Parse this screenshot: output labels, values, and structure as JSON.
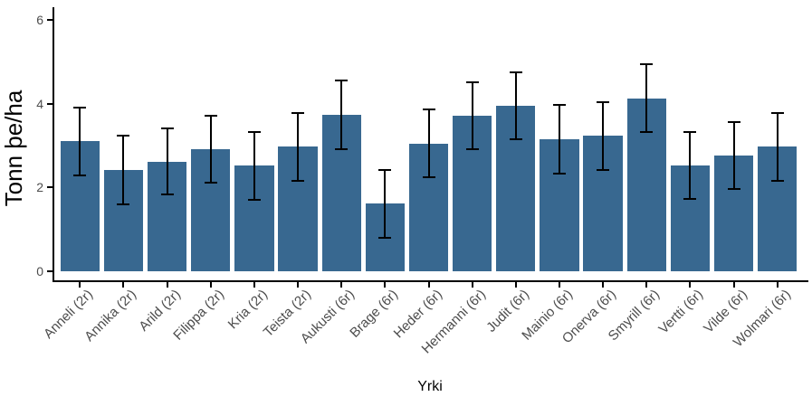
{
  "chart_data": {
    "type": "bar",
    "title": "",
    "xlabel": "Yrki",
    "ylabel": "Tonn þe/ha",
    "categories": [
      "Anneli (2r)",
      "Annika (2r)",
      "Arild (2r)",
      "Filippa (2r)",
      "Kria (2r)",
      "Teista (2r)",
      "Aukusti (6r)",
      "Brage (6r)",
      "Heder (6r)",
      "Hermanni (6r)",
      "Judit (6r)",
      "Mainio (6r)",
      "Onerva (6r)",
      "Smyrill (6r)",
      "Vertti (6r)",
      "Vilde (6r)",
      "Wolmari (6r)"
    ],
    "values": [
      3.1,
      2.42,
      2.62,
      2.92,
      2.52,
      2.98,
      3.73,
      1.61,
      3.05,
      3.72,
      3.95,
      3.16,
      3.23,
      4.13,
      2.52,
      2.77,
      2.98
    ],
    "errors": [
      0.82,
      0.82,
      0.79,
      0.8,
      0.81,
      0.81,
      0.82,
      0.81,
      0.81,
      0.8,
      0.8,
      0.82,
      0.81,
      0.81,
      0.8,
      0.8,
      0.81
    ],
    "error_bar_type": "symmetric",
    "y_ticks": [
      0,
      2,
      4,
      6
    ],
    "ylim": [
      0,
      6.35
    ],
    "x_tick_angle": 45,
    "grid": "off",
    "legend": "none",
    "colors": {
      "bar": "#386890",
      "error": "#000000",
      "axis": "#000000",
      "tick_label": "#4D4D4D",
      "axis_title": "#000000",
      "background": "#FFFFFF"
    }
  }
}
